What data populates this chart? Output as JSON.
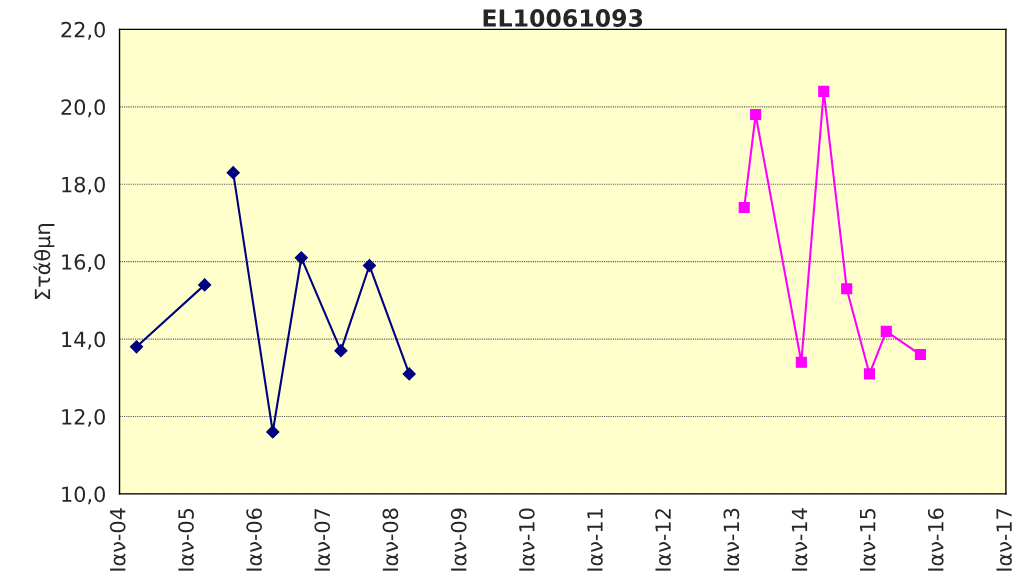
{
  "chart_data": {
    "type": "line",
    "title": "EL10061093",
    "ylabel": "Στάθμη",
    "series": [
      {
        "color": "#000080",
        "marker": "diamond",
        "x": [
          "2004-04",
          "2005-04",
          "2005-06",
          "2005-09",
          "2006-04",
          "2006-09",
          "2007-04",
          "2007-09",
          "2008-04"
        ],
        "values": [
          13.8,
          15.4,
          null,
          18.3,
          11.6,
          16.1,
          13.7,
          15.9,
          13.1
        ]
      },
      {
        "color": "#ff00ff",
        "marker": "square",
        "x": [
          "2013-03",
          "2013-05",
          "2014-01",
          "2014-05",
          "2014-09",
          "2015-01",
          "2015-04",
          "2015-10"
        ],
        "values": [
          17.4,
          19.8,
          13.4,
          20.4,
          15.3,
          13.1,
          14.2,
          13.6
        ]
      }
    ],
    "xlim": [
      "2004-01",
      "2017-01"
    ],
    "xticks": [
      {
        "value": "2004-01",
        "label": "Ιαν-04"
      },
      {
        "value": "2005-01",
        "label": "Ιαν-05"
      },
      {
        "value": "2006-01",
        "label": "Ιαν-06"
      },
      {
        "value": "2007-01",
        "label": "Ιαν-07"
      },
      {
        "value": "2008-01",
        "label": "Ιαν-08"
      },
      {
        "value": "2009-01",
        "label": "Ιαν-09"
      },
      {
        "value": "2010-01",
        "label": "Ιαν-10"
      },
      {
        "value": "2011-01",
        "label": "Ιαν-11"
      },
      {
        "value": "2012-01",
        "label": "Ιαν-12"
      },
      {
        "value": "2013-01",
        "label": "Ιαν-13"
      },
      {
        "value": "2014-01",
        "label": "Ιαν-14"
      },
      {
        "value": "2015-01",
        "label": "Ιαν-15"
      },
      {
        "value": "2016-01",
        "label": "Ιαν-16"
      },
      {
        "value": "2017-01",
        "label": "Ιαν-17"
      }
    ],
    "ylim": [
      10,
      22
    ],
    "yticks": [
      {
        "value": 10,
        "label": "10,0"
      },
      {
        "value": 12,
        "label": "12,0"
      },
      {
        "value": 14,
        "label": "14,0"
      },
      {
        "value": 16,
        "label": "16,0"
      },
      {
        "value": 18,
        "label": "18,0"
      },
      {
        "value": 20,
        "label": "20,0"
      },
      {
        "value": 22,
        "label": "22,0"
      }
    ],
    "grid": "y",
    "legend": false,
    "line_style": "solid"
  }
}
